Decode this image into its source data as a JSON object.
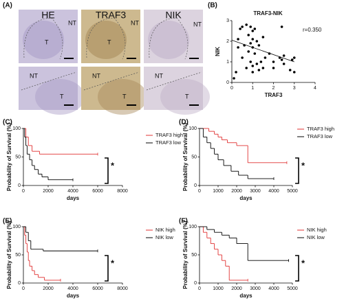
{
  "histology": {
    "label": "(A)",
    "columns": [
      "HE",
      "TRAF3",
      "NIK"
    ],
    "regions": [
      [
        [
          "T",
          "NT"
        ],
        [
          "T",
          "NT"
        ],
        [
          "NT"
        ]
      ],
      [
        [
          "NT",
          "T"
        ],
        [
          "NT",
          "T"
        ],
        [
          "NT",
          "T"
        ]
      ]
    ]
  },
  "chart_data": [
    {
      "type": "scatter",
      "label": "(B)",
      "title": "TRAF3-NIK",
      "x_label": "TRAF3",
      "y_label": "NIK",
      "annotation": "r=0.350",
      "color": "#000000",
      "x": [
        0.1,
        0.2,
        0.3,
        0.3,
        0.4,
        0.5,
        0.5,
        0.6,
        0.7,
        0.7,
        0.8,
        0.8,
        0.9,
        0.9,
        0.9,
        1.0,
        1.0,
        1.0,
        1.0,
        1.0,
        1.1,
        1.1,
        1.2,
        1.2,
        1.3,
        1.3,
        1.4,
        1.5,
        1.5,
        1.6,
        1.8,
        2.0,
        2.0,
        2.3,
        2.4,
        2.4,
        2.5,
        2.5,
        2.8,
        2.9,
        3.0,
        3.0
      ],
      "values": [
        0.2,
        0.5,
        1.7,
        2.1,
        2.6,
        2.7,
        1.2,
        1.8,
        2.8,
        0.7,
        2.3,
        1.5,
        2.7,
        1.9,
        1.0,
        2.5,
        2.1,
        1.7,
        0.8,
        0.5,
        2.6,
        1.4,
        2.0,
        0.9,
        1.8,
        0.6,
        1.0,
        0.7,
        2.2,
        1.2,
        1.4,
        1.0,
        0.7,
        1.2,
        2.7,
        1.1,
        0.9,
        1.3,
        0.6,
        1.1,
        1.2,
        0.5
      ],
      "trend": {
        "x": [
          0,
          3
        ],
        "values": [
          2.05,
          1.0
        ]
      },
      "xlim": [
        0,
        4
      ],
      "xticks": [
        0,
        1,
        2,
        3,
        4
      ],
      "ylim": [
        0,
        3
      ],
      "yticks": [
        0,
        1,
        2,
        3
      ]
    },
    {
      "type": "step",
      "label": "(C)",
      "x_label": "days",
      "y_label": "Probability of Survival (%)",
      "annotation": "*",
      "series": [
        {
          "name": "TRAF3 high",
          "color": "#e03030",
          "x": [
            0,
            200,
            400,
            700,
            1300,
            6000
          ],
          "values": [
            100,
            85,
            70,
            60,
            55,
            55
          ]
        },
        {
          "name": "TRAF3 low",
          "color": "#000000",
          "x": [
            0,
            100,
            200,
            300,
            500,
            700,
            900,
            1200,
            1500,
            2000,
            4000
          ],
          "values": [
            100,
            85,
            70,
            55,
            45,
            35,
            28,
            20,
            15,
            10,
            10
          ]
        }
      ],
      "xlim": [
        0,
        8000
      ],
      "xticks": [
        0,
        2000,
        4000,
        6000,
        8000
      ],
      "ylim": [
        0,
        100
      ],
      "yticks": [
        0,
        50,
        100
      ]
    },
    {
      "type": "step",
      "label": "(D)",
      "x_label": "days",
      "y_label": "Probability of Survival (%)",
      "annotation": "*",
      "series": [
        {
          "name": "TRAF3 high",
          "color": "#e03030",
          "x": [
            0,
            500,
            800,
            1000,
            1200,
            1500,
            2000,
            2600,
            4700
          ],
          "values": [
            100,
            95,
            90,
            85,
            80,
            75,
            70,
            40,
            40
          ]
        },
        {
          "name": "TRAF3 low",
          "color": "#000000",
          "x": [
            0,
            200,
            400,
            600,
            800,
            1000,
            1300,
            1700,
            2100,
            2600,
            4000
          ],
          "values": [
            100,
            85,
            75,
            65,
            55,
            45,
            35,
            25,
            18,
            12,
            12
          ]
        }
      ],
      "xlim": [
        0,
        5000
      ],
      "xticks": [
        0,
        1000,
        2000,
        3000,
        4000,
        5000
      ],
      "ylim": [
        0,
        100
      ],
      "yticks": [
        0,
        50,
        100
      ]
    },
    {
      "type": "step",
      "label": "(E)",
      "x_label": "days",
      "y_label": "Probability of Survival (%)",
      "annotation": "*",
      "series": [
        {
          "name": "NIK high",
          "color": "#e03030",
          "x": [
            0,
            100,
            200,
            300,
            400,
            500,
            700,
            900,
            1200,
            1700,
            3000
          ],
          "values": [
            100,
            85,
            70,
            55,
            40,
            30,
            22,
            15,
            10,
            5,
            5
          ]
        },
        {
          "name": "NIK low",
          "color": "#000000",
          "x": [
            0,
            200,
            400,
            600,
            1600,
            6000
          ],
          "values": [
            100,
            90,
            75,
            60,
            57,
            57
          ]
        }
      ],
      "xlim": [
        0,
        8000
      ],
      "xticks": [
        0,
        2000,
        4000,
        6000,
        8000
      ],
      "ylim": [
        0,
        100
      ],
      "yticks": [
        0,
        50,
        100
      ]
    },
    {
      "type": "step",
      "label": "(F)",
      "x_label": "days",
      "y_label": "Probability of Survival (%)",
      "annotation": "*",
      "series": [
        {
          "name": "NIK high",
          "color": "#e03030",
          "x": [
            0,
            200,
            400,
            600,
            800,
            1000,
            1200,
            1400,
            1600,
            2600
          ],
          "values": [
            100,
            90,
            80,
            70,
            60,
            50,
            40,
            30,
            5,
            5
          ]
        },
        {
          "name": "NIK low",
          "color": "#000000",
          "x": [
            0,
            400,
            800,
            1200,
            1600,
            2000,
            2600,
            4800
          ],
          "values": [
            100,
            95,
            90,
            85,
            80,
            70,
            40,
            40
          ]
        }
      ],
      "xlim": [
        0,
        5000
      ],
      "xticks": [
        0,
        1000,
        2000,
        3000,
        4000,
        5000
      ],
      "ylim": [
        0,
        100
      ],
      "yticks": [
        0,
        50,
        100
      ]
    }
  ]
}
